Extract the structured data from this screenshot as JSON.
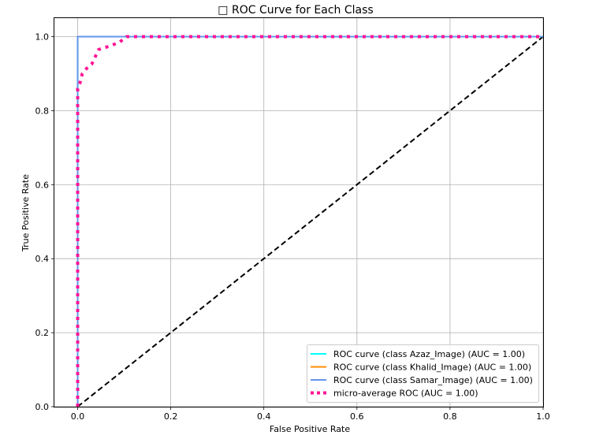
{
  "chart_data": {
    "type": "line",
    "title": "□ ROC Curve for Each Class",
    "xlabel": "False Positive Rate",
    "ylabel": "True Positive Rate",
    "xlim": [
      0.0,
      1.0
    ],
    "ylim": [
      0.0,
      1.0
    ],
    "x_ticks": [
      0.0,
      0.2,
      0.4,
      0.6,
      0.8,
      1.0
    ],
    "y_ticks": [
      0.0,
      0.2,
      0.4,
      0.6,
      0.8,
      1.0
    ],
    "x_tick_labels": [
      "0.0",
      "0.2",
      "0.4",
      "0.6",
      "0.8",
      "1.0"
    ],
    "y_tick_labels": [
      "0.0",
      "0.2",
      "0.4",
      "0.6",
      "0.8",
      "1.0"
    ],
    "grid": true,
    "legend_position": "lower-right",
    "series": [
      {
        "name": "ROC curve (class Azaz_Image) (AUC = 1.00)",
        "color": "#00ffff",
        "style": "solid",
        "x": [
          0.0,
          0.0,
          1.0
        ],
        "y": [
          0.0,
          1.0,
          1.0
        ]
      },
      {
        "name": "ROC curve (class Khalid_Image) (AUC = 1.00)",
        "color": "#ff8c00",
        "style": "solid",
        "x": [
          0.0,
          0.0,
          1.0
        ],
        "y": [
          0.0,
          1.0,
          1.0
        ]
      },
      {
        "name": "ROC curve (class Samar_Image) (AUC = 1.00)",
        "color": "#6495ed",
        "style": "solid",
        "x": [
          0.0,
          0.0,
          1.0
        ],
        "y": [
          0.0,
          1.0,
          1.0
        ]
      },
      {
        "name": "micro-average ROC (AUC = 1.00)",
        "color": "#ff1493",
        "style": "dotted",
        "x": [
          0.0,
          0.0,
          0.005,
          0.01,
          0.02,
          0.03,
          0.045,
          0.07,
          0.09,
          0.105,
          1.0
        ],
        "y": [
          0.0,
          0.86,
          0.875,
          0.9,
          0.915,
          0.925,
          0.965,
          0.975,
          0.985,
          1.0,
          1.0
        ]
      }
    ],
    "reference_line": {
      "color": "#000000",
      "style": "dashed",
      "x": [
        0.0,
        1.0
      ],
      "y": [
        0.0,
        1.0
      ]
    }
  }
}
